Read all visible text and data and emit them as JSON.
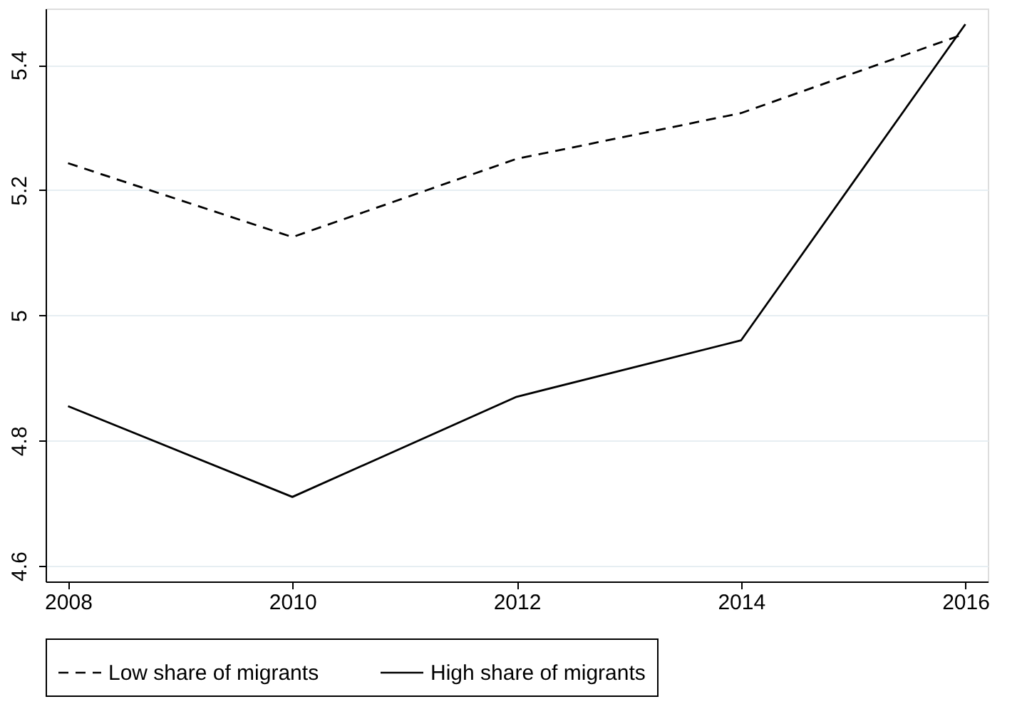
{
  "chart_data": {
    "type": "line",
    "x": [
      2008,
      2010,
      2012,
      2014,
      2016
    ],
    "series": [
      {
        "name": "Low share of migrants",
        "color": "#000000",
        "line_style": "dashed",
        "values": [
          5.243,
          5.125,
          5.25,
          5.323,
          5.45
        ]
      },
      {
        "name": "High share of migrants",
        "color": "#000000",
        "line_style": "solid",
        "values": [
          4.855,
          4.71,
          4.87,
          4.96,
          5.465
        ]
      }
    ],
    "xlim": [
      2007.8,
      2016.2
    ],
    "xticks": [
      2008,
      2010,
      2012,
      2014,
      2016
    ],
    "ylim": [
      4.575,
      5.49
    ],
    "yticks": [
      4.6,
      4.8,
      5,
      5.2,
      5.4
    ],
    "grid": "y",
    "legend": "bottom",
    "marker": "none"
  }
}
